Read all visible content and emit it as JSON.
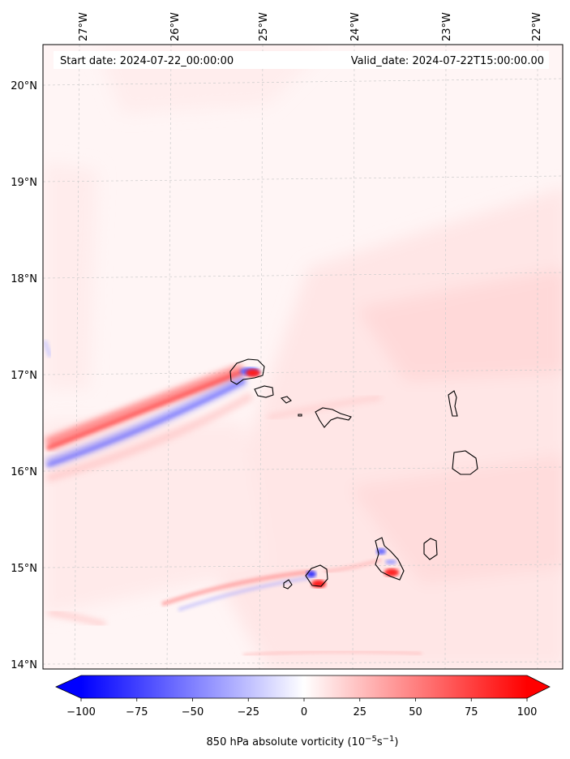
{
  "start_date": "Start date: 2024-07-22_00:00:00",
  "valid_date": "Valid_date: 2024-07-22T15:00:00.00",
  "lon_labels": [
    "27°W",
    "26°W",
    "25°W",
    "24°W",
    "23°W",
    "22°W"
  ],
  "lat_labels": [
    "20°N",
    "19°N",
    "18°N",
    "17°N",
    "16°N",
    "15°N",
    "14°N"
  ],
  "colorbar": {
    "ticks": [
      "−100",
      "−75",
      "−50",
      "−25",
      "0",
      "25",
      "50",
      "75",
      "100"
    ],
    "label_main": "850 hPa absolute vorticity (10",
    "label_exp1": "−5",
    "label_mid": "s",
    "label_exp2": "−1",
    "label_end": ")"
  },
  "colors": {
    "negative": "#0000ff",
    "positive": "#ff0000",
    "background_field": "#ffe8e8",
    "coastline": "#000000"
  }
}
